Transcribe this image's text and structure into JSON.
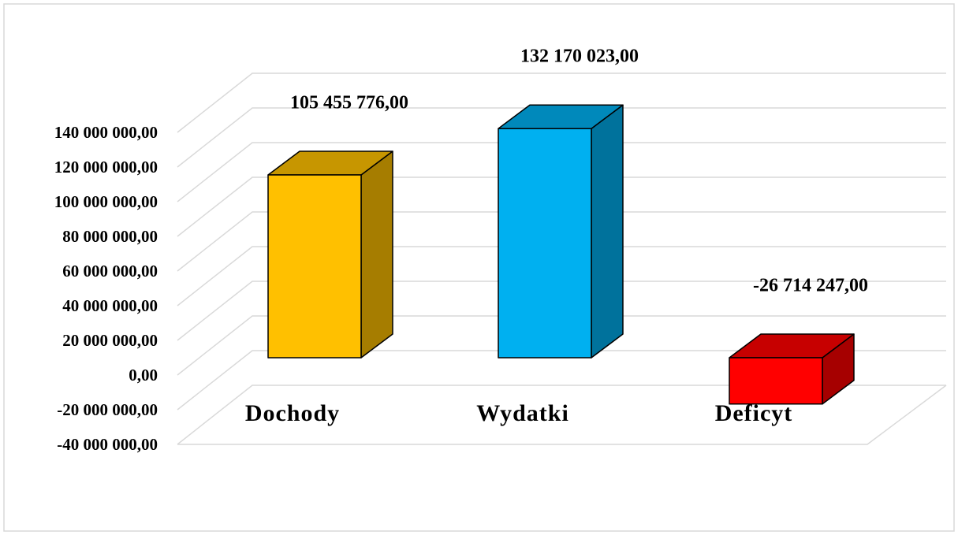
{
  "chart_data": {
    "type": "bar",
    "categories": [
      "Dochody",
      "Wydatki",
      "Deficyt"
    ],
    "values": [
      105455776,
      132170023,
      -26714247
    ],
    "value_labels": [
      "105 455 776,00",
      "132 170 023,00",
      "-26 714 247,00"
    ],
    "colors": [
      "#FFC000",
      "#00B0F0",
      "#FF0000"
    ],
    "ylim": [
      -40000000,
      140000000
    ],
    "yticks": [
      {
        "value": -40000000,
        "label": "-40 000 000,00"
      },
      {
        "value": -20000000,
        "label": "-20 000 000,00"
      },
      {
        "value": 0,
        "label": "0,00"
      },
      {
        "value": 20000000,
        "label": "20 000 000,00"
      },
      {
        "value": 40000000,
        "label": "40 000 000,00"
      },
      {
        "value": 60000000,
        "label": "60 000 000,00"
      },
      {
        "value": 80000000,
        "label": "80 000 000,00"
      },
      {
        "value": 100000000,
        "label": "100 000 000,00"
      },
      {
        "value": 120000000,
        "label": "120 000 000,00"
      },
      {
        "value": 140000000,
        "label": "140 000 000,00"
      }
    ],
    "grid": true
  }
}
